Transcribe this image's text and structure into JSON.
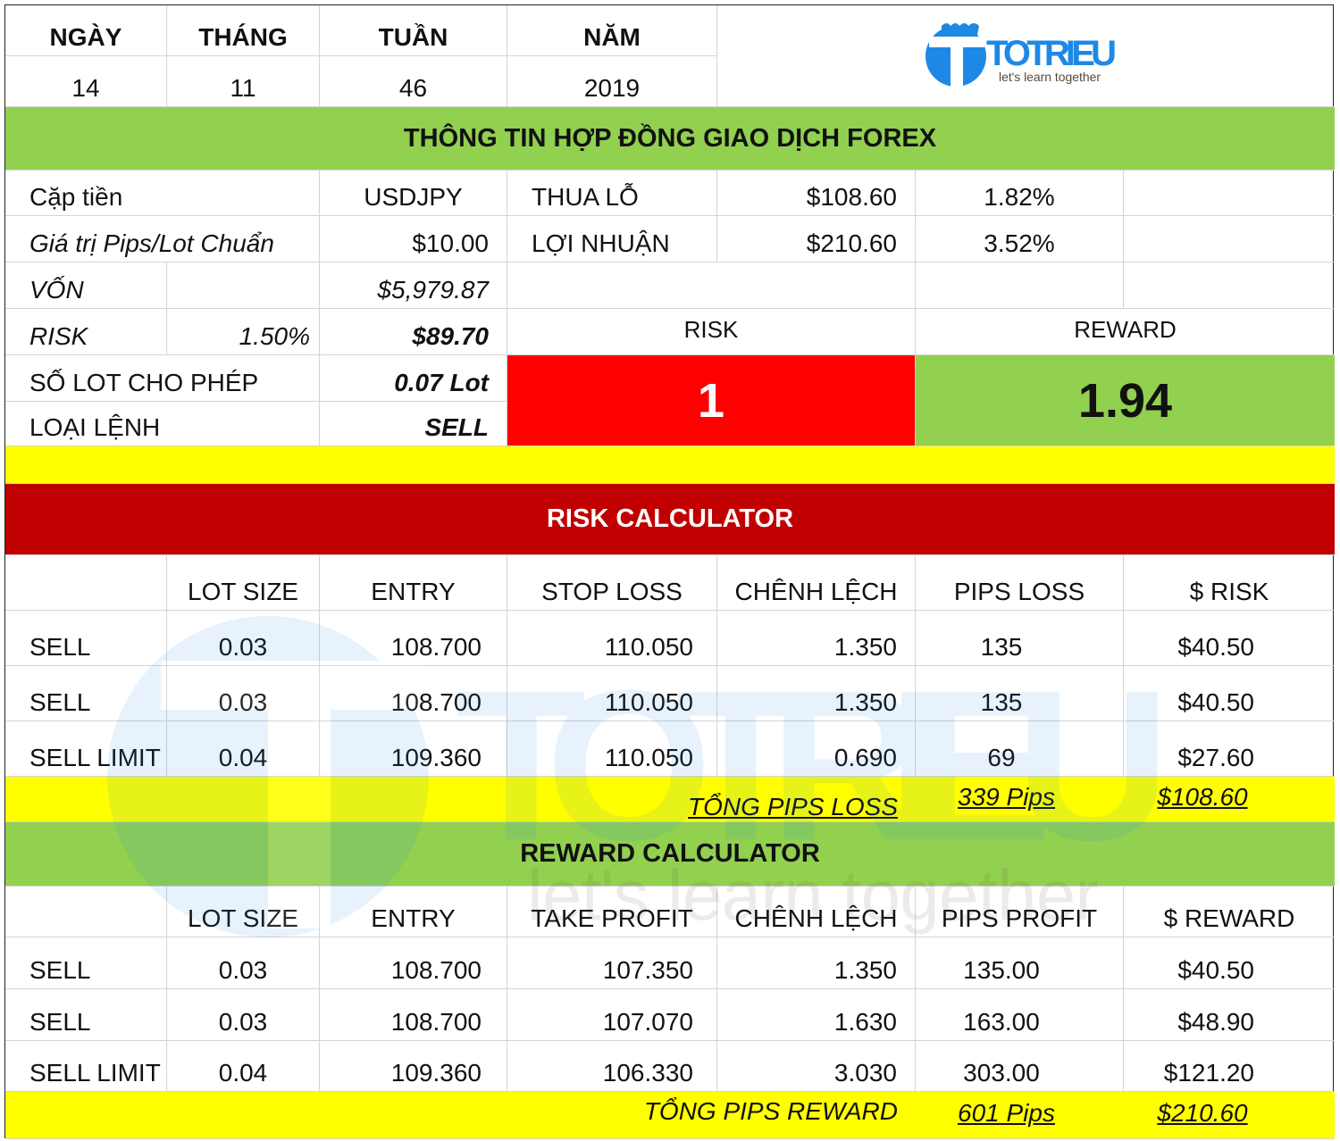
{
  "date": {
    "headers": [
      "NGÀY",
      "THÁNG",
      "TUẦN",
      "NĂM"
    ],
    "values": [
      "14",
      "11",
      "46",
      "2019"
    ]
  },
  "logo": {
    "name": "TOTRIEU",
    "tagline": "let's learn together",
    "color": "#1e88e5"
  },
  "contract": {
    "title": "THÔNG TIN HỢP ĐỒNG GIAO DỊCH FOREX",
    "pair_label": "Cặp tiền",
    "pair": "USDJPY",
    "pip_label": "Giá trị Pips/Lot Chuẩn",
    "pip_value": "$10.00",
    "loss_label": "THUA LỖ",
    "loss": "$108.60",
    "loss_pct": "1.82%",
    "profit_label": "LỢI NHUẬN",
    "profit": "$210.60",
    "profit_pct": "3.52%",
    "capital_label": "VỐN",
    "capital": "$5,979.87",
    "risk_label": "RISK",
    "risk_pct": "1.50%",
    "risk_amount": "$89.70",
    "lot_label": "SỐ LOT CHO PHÉP",
    "lot": "0.07 Lot",
    "order_label": "LOẠI LỆNH",
    "order": "SELL",
    "rr_risk_label": "RISK",
    "rr_reward_label": "REWARD",
    "rr_risk": "1",
    "rr_reward": "1.94"
  },
  "risk_calc": {
    "title": "RISK CALCULATOR",
    "headers": [
      "",
      "LOT SIZE",
      "ENTRY",
      "STOP LOSS",
      "CHÊNH LỆCH",
      "PIPS LOSS",
      "$ RISK"
    ],
    "rows": [
      [
        "SELL",
        "0.03",
        "108.700",
        "110.050",
        "1.350",
        "135",
        "$40.50"
      ],
      [
        "SELL",
        "0.03",
        "108.700",
        "110.050",
        "1.350",
        "135",
        "$40.50"
      ],
      [
        "SELL LIMIT",
        "0.04",
        "109.360",
        "110.050",
        "0.690",
        "69",
        "$27.60"
      ]
    ],
    "total_label": "TỔNG PIPS LOSS",
    "total_pips": "339 Pips",
    "total_amount": "$108.60"
  },
  "reward_calc": {
    "title": "REWARD CALCULATOR",
    "headers": [
      "",
      "LOT SIZE",
      "ENTRY",
      "TAKE PROFIT",
      "CHÊNH LỆCH",
      "PIPS PROFIT",
      "$ REWARD"
    ],
    "rows": [
      [
        "SELL",
        "0.03",
        "108.700",
        "107.350",
        "1.350",
        "135.00",
        "$40.50"
      ],
      [
        "SELL",
        "0.03",
        "108.700",
        "107.070",
        "1.630",
        "163.00",
        "$48.90"
      ],
      [
        "SELL LIMIT",
        "0.04",
        "109.360",
        "106.330",
        "3.030",
        "303.00",
        "$121.20"
      ]
    ],
    "total_label": "TỔNG PIPS REWARD",
    "total_pips": "601 Pips",
    "total_amount": "$210.60"
  },
  "colors": {
    "green": "#92d050",
    "yellow": "#ffff00",
    "red": "#ff0000",
    "dark_red": "#c00000"
  }
}
